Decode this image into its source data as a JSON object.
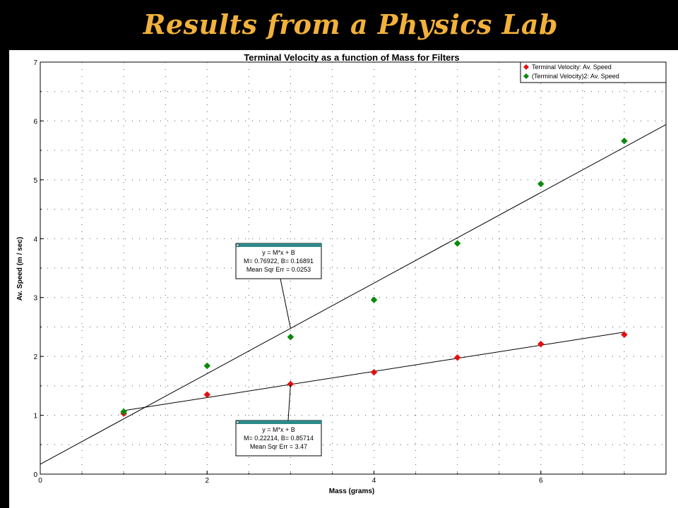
{
  "slide": {
    "title": "Results from a Physics Lab"
  },
  "colors": {
    "background": "#000000",
    "title": "#F2B13A",
    "series_red": "#E01010",
    "series_green": "#0A8A0A",
    "fit_box_header": "#2B8A8A"
  },
  "chart_data": {
    "type": "scatter",
    "title": "Terminal Velocity as a function of Mass for Filters",
    "xlabel": "Mass (grams)",
    "ylabel": "Av. Speed (m / sec)",
    "xlim": [
      0,
      7.5
    ],
    "ylim": [
      0,
      7
    ],
    "x_ticks": [
      "0",
      "2",
      "4",
      "6"
    ],
    "y_ticks": [
      "0",
      "1",
      "2",
      "3",
      "4",
      "5",
      "6",
      "7"
    ],
    "grid": true,
    "legend_position": "top-right",
    "series": [
      {
        "name": "Terminal Velocity: Av. Speed",
        "color": "#E01010",
        "marker": "diamond",
        "x": [
          1,
          2,
          3,
          4,
          5,
          6,
          7
        ],
        "y": [
          1.03,
          1.35,
          1.53,
          1.73,
          1.98,
          2.21,
          2.37
        ]
      },
      {
        "name": "(Terminal Velocity)2: Av. Speed",
        "color": "#0A8A0A",
        "marker": "diamond",
        "x": [
          1,
          2,
          3,
          4,
          5,
          6,
          7
        ],
        "y": [
          1.06,
          1.84,
          2.33,
          2.96,
          3.92,
          4.93,
          5.66
        ]
      }
    ],
    "fits": [
      {
        "series": "(Terminal Velocity)2: Av. Speed",
        "equation": "y = M*x + B",
        "params": "M= 0.76922,  B= 0.16891",
        "mse": "Mean Sqr Err = 0.0253",
        "slope": 0.76922,
        "intercept": 0.16891,
        "x_range": [
          0,
          7.5
        ]
      },
      {
        "series": "Terminal Velocity: Av. Speed",
        "equation": "y = M*x + B",
        "params": "M= 0.22214,  B= 0.85714",
        "mse": "Mean Sqr Err = 3.47",
        "slope": 0.22214,
        "intercept": 0.85714,
        "x_range": [
          1,
          7
        ]
      }
    ]
  }
}
